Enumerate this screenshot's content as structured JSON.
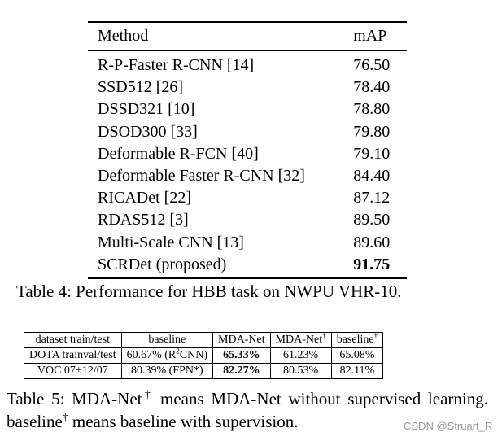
{
  "table4": {
    "header": [
      "Method",
      "mAP"
    ],
    "rows": [
      [
        "R-P-Faster R-CNN [14]",
        "76.50"
      ],
      [
        "SSD512 [26]",
        "78.40"
      ],
      [
        "DSSD321 [10]",
        "78.80"
      ],
      [
        "DSOD300 [33]",
        "79.80"
      ],
      [
        "Deformable R-FCN [40]",
        "79.10"
      ],
      [
        "Deformable Faster R-CNN [32]",
        "84.40"
      ],
      [
        "RICADet [22]",
        "87.12"
      ],
      [
        "RDAS512 [3]",
        "89.50"
      ],
      [
        "Multi-Scale CNN [13]",
        "89.60"
      ],
      [
        "SCRDet (proposed)",
        "91.75"
      ]
    ],
    "bold_cells": [
      [
        9,
        1
      ]
    ],
    "caption": "Table 4: Performance for HBB task on NWPU VHR-10."
  },
  "table5": {
    "header": [
      "dataset train/test",
      "baseline",
      "MDA-Net",
      [
        {
          "text": "MDA-Net"
        },
        {
          "sup": "†"
        }
      ],
      [
        {
          "text": "baseline"
        },
        {
          "sup": "†"
        }
      ]
    ],
    "rows": [
      [
        "DOTA trainval/test",
        [
          {
            "text": "60.67% (R"
          },
          {
            "sup": "2"
          },
          {
            "text": "CNN)"
          }
        ],
        "65.33%",
        "61.23%",
        "65.08%"
      ],
      [
        "VOC 07+12/07",
        "80.39% (FPN*)",
        "82.27%",
        "80.53%",
        "82.11%"
      ]
    ],
    "bold_cells": [
      [
        0,
        2
      ],
      [
        1,
        2
      ]
    ],
    "caption": [
      {
        "text": "Table 5: MDA-Net"
      },
      {
        "sup": "†"
      },
      {
        "text": " means MDA-Net without supervised learning. baseline"
      },
      {
        "sup": "†"
      },
      {
        "text": " means baseline with supervision."
      }
    ]
  },
  "watermark": "CSDN @Struart_R"
}
